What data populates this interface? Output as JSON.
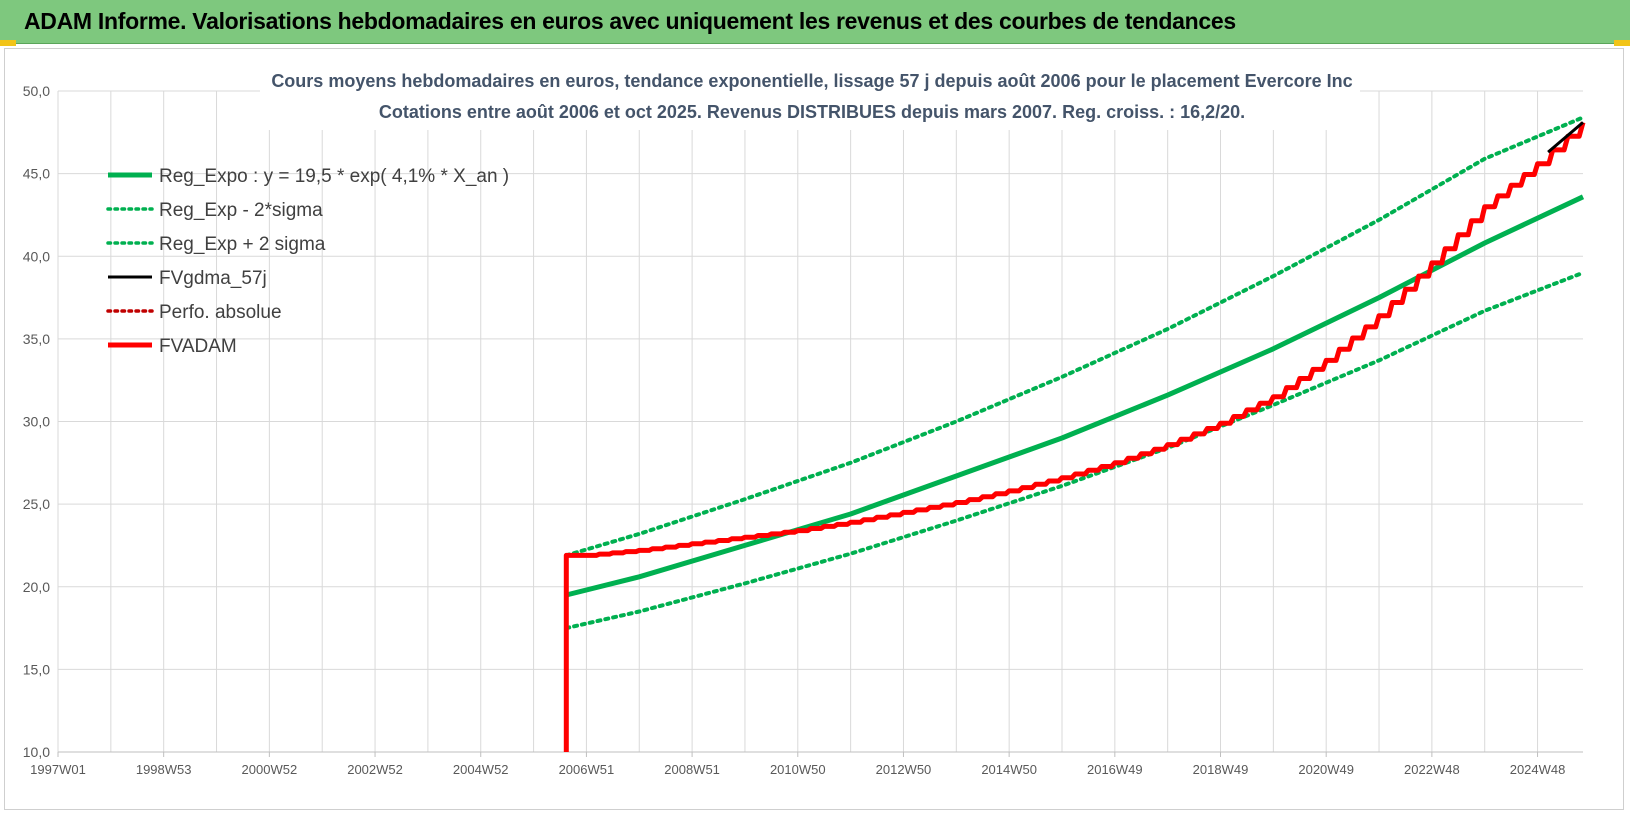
{
  "header": {
    "title": "ADAM Informe. Valorisations hebdomadaires en euros avec uniquement les revenus et des courbes de tendances"
  },
  "chart_data": {
    "type": "line",
    "title_lines": [
      "Cours moyens hebdomadaires en euros, tendance exponentielle, lissage 57 j depuis août 2006 pour le placement Evercore Inc",
      "Cotations entre août 2006 et oct 2025.  Revenus DISTRIBUES depuis mars 2007. Reg. croiss. : 16,2/20."
    ],
    "xlabel": "",
    "ylabel": "",
    "ylim": [
      10,
      50
    ],
    "yticks": [
      "10,0",
      "15,0",
      "20,0",
      "25,0",
      "30,0",
      "35,0",
      "40,0",
      "45,0",
      "50,0"
    ],
    "xlim": [
      1997.0,
      2025.86
    ],
    "xticks": [
      {
        "label": "1997W01",
        "x": 1997.0
      },
      {
        "label": "1998W53",
        "x": 1999.0
      },
      {
        "label": "2000W52",
        "x": 2001.0
      },
      {
        "label": "2002W52",
        "x": 2003.0
      },
      {
        "label": "2004W52",
        "x": 2005.0
      },
      {
        "label": "2006W51",
        "x": 2007.0
      },
      {
        "label": "2008W51",
        "x": 2009.0
      },
      {
        "label": "2010W50",
        "x": 2011.0
      },
      {
        "label": "2012W50",
        "x": 2013.0
      },
      {
        "label": "2014W50",
        "x": 2015.0
      },
      {
        "label": "2016W49",
        "x": 2017.0
      },
      {
        "label": "2018W49",
        "x": 2019.0
      },
      {
        "label": "2020W49",
        "x": 2021.0
      },
      {
        "label": "2022W48",
        "x": 2023.0
      },
      {
        "label": "2024W48",
        "x": 2025.0
      }
    ],
    "grid": true,
    "legend_position": "top-left",
    "series": [
      {
        "name": "Reg_Expo : y = 19,5 * exp( 4,1% *  X_an )",
        "color": "#00b050",
        "style": "solid",
        "points": [
          [
            2006.62,
            19.5
          ],
          [
            2008,
            20.6
          ],
          [
            2010,
            22.5
          ],
          [
            2012,
            24.4
          ],
          [
            2014,
            26.7
          ],
          [
            2016,
            29.0
          ],
          [
            2018,
            31.6
          ],
          [
            2020,
            34.4
          ],
          [
            2022,
            37.5
          ],
          [
            2024,
            40.8
          ],
          [
            2025.86,
            43.6
          ]
        ]
      },
      {
        "name": "Reg_Exp - 2*sigma",
        "color": "#00b050",
        "style": "dotted",
        "points": [
          [
            2006.62,
            17.5
          ],
          [
            2008,
            18.5
          ],
          [
            2010,
            20.2
          ],
          [
            2012,
            22.0
          ],
          [
            2014,
            24.0
          ],
          [
            2016,
            26.1
          ],
          [
            2018,
            28.4
          ],
          [
            2020,
            31.0
          ],
          [
            2022,
            33.7
          ],
          [
            2024,
            36.7
          ],
          [
            2025.86,
            39.0
          ]
        ]
      },
      {
        "name": "Reg_Exp + 2 sigma",
        "color": "#00b050",
        "style": "dotted",
        "points": [
          [
            2006.62,
            21.9
          ],
          [
            2008,
            23.2
          ],
          [
            2010,
            25.3
          ],
          [
            2012,
            27.5
          ],
          [
            2014,
            30.0
          ],
          [
            2016,
            32.7
          ],
          [
            2018,
            35.6
          ],
          [
            2020,
            38.8
          ],
          [
            2022,
            42.2
          ],
          [
            2024,
            45.9
          ],
          [
            2025.86,
            48.4
          ]
        ]
      },
      {
        "name": "FVgdma_57j",
        "color": "#000000",
        "style": "solid",
        "points": [
          [
            2025.2,
            46.3
          ],
          [
            2025.86,
            48.1
          ]
        ]
      },
      {
        "name": "Perfo. absolue",
        "color": "#c00000",
        "style": "dotted",
        "points": []
      },
      {
        "name": "FVADAM",
        "color": "#ff0000",
        "style": "solid",
        "points": [
          [
            2006.62,
            10.0
          ],
          [
            2006.62,
            21.9
          ],
          [
            2007,
            21.9
          ],
          [
            2008,
            22.2
          ],
          [
            2009,
            22.6
          ],
          [
            2010,
            23.0
          ],
          [
            2011,
            23.4
          ],
          [
            2012,
            23.9
          ],
          [
            2013,
            24.5
          ],
          [
            2014,
            25.1
          ],
          [
            2015,
            25.8
          ],
          [
            2016,
            26.6
          ],
          [
            2017,
            27.5
          ],
          [
            2018,
            28.6
          ],
          [
            2019,
            29.9
          ],
          [
            2020,
            31.5
          ],
          [
            2021,
            33.7
          ],
          [
            2022,
            36.4
          ],
          [
            2023,
            39.6
          ],
          [
            2024,
            43.0
          ],
          [
            2025,
            45.6
          ],
          [
            2025.86,
            48.1
          ]
        ]
      }
    ]
  }
}
